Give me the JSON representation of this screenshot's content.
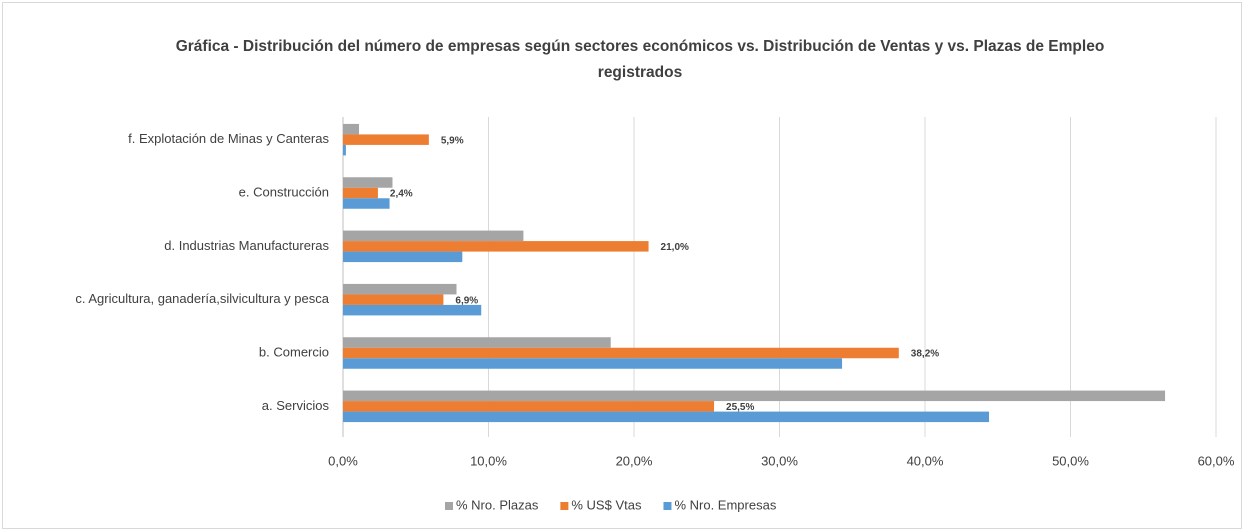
{
  "chart_data": {
    "type": "barh",
    "title": "Gráfica - Distribución del número de empresas según sectores económicos vs. Distribución de Ventas y vs. Plazas de Empleo registrados",
    "categories": [
      "a. Servicios",
      "b. Comercio",
      "c. Agricultura, ganadería,silvicultura y pesca",
      "d. Industrias Manufactureras",
      "e. Construcción",
      "f. Explotación de Minas y Canteras"
    ],
    "series": [
      {
        "name": "% Nro. Plazas",
        "color": "#a5a5a5",
        "values": [
          56.5,
          18.4,
          7.8,
          12.4,
          3.4,
          1.1
        ]
      },
      {
        "name": "% US$ Vtas",
        "color": "#ed7d31",
        "values": [
          25.5,
          38.2,
          6.9,
          21.0,
          2.4,
          5.9
        ],
        "value_labels": [
          "25,5%",
          "38,2%",
          "6,9%",
          "21,0%",
          "2,4%",
          "5,9%"
        ]
      },
      {
        "name": "% Nro. Empresas",
        "color": "#5b9bd5",
        "values": [
          44.4,
          34.3,
          9.5,
          8.2,
          3.2,
          0.2
        ]
      }
    ],
    "xlim": [
      0,
      60
    ],
    "xticks": [
      {
        "value": 0,
        "label": "0,0%"
      },
      {
        "value": 10,
        "label": "10,0%"
      },
      {
        "value": 20,
        "label": "20,0%"
      },
      {
        "value": 30,
        "label": "30,0%"
      },
      {
        "value": 40,
        "label": "40,0%"
      },
      {
        "value": 50,
        "label": "50,0%"
      },
      {
        "value": 60,
        "label": "60,0%"
      }
    ],
    "grid": true,
    "legend": "bottom"
  }
}
